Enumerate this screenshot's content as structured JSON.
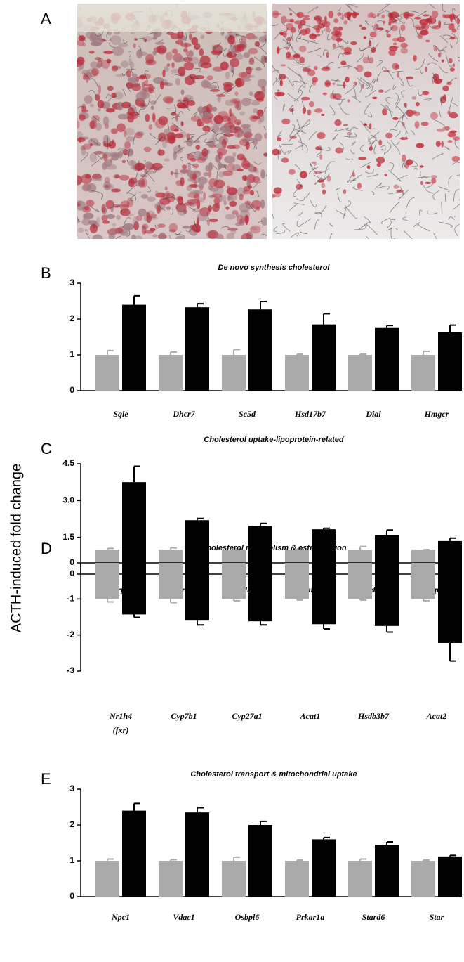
{
  "panel_a": {
    "label": "A"
  },
  "y_axis_label": "ACTH-induced fold change",
  "chart_data": [
    {
      "type": "bar",
      "panel_label": "B",
      "title": "De novo synthesis cholesterol",
      "categories": [
        "Sqle",
        "Dhcr7",
        "Sc5d",
        "Hsd17b7",
        "Dial",
        "Hmgcr"
      ],
      "series": [
        {
          "color": "#aaaaaa",
          "values": [
            1,
            1,
            1,
            1,
            1,
            1
          ],
          "errors": [
            0.12,
            0.08,
            0.15,
            0.02,
            0.02,
            0.1
          ]
        },
        {
          "color": "#000000",
          "values": [
            2.4,
            2.33,
            2.27,
            1.85,
            1.75,
            1.63
          ],
          "errors": [
            0.25,
            0.1,
            0.22,
            0.3,
            0.07,
            0.2
          ]
        }
      ],
      "ylim": [
        0,
        3
      ],
      "yticks": [
        0,
        1,
        2,
        3
      ]
    },
    {
      "type": "bar",
      "panel_label": "C",
      "title": "Cholesterol uptake-lipoprotein-related",
      "categories": [
        "Lrp8",
        "Ldlrap1",
        "Hdlbp",
        "Scarb1",
        "Ldlr",
        "Lrp10"
      ],
      "series": [
        {
          "color": "#aaaaaa",
          "values": [
            1,
            1,
            1,
            1,
            1,
            1
          ],
          "errors": [
            0.05,
            0.07,
            0.04,
            0.03,
            0.13,
            0
          ]
        },
        {
          "color": "#000000",
          "values": [
            3.75,
            2.2,
            1.97,
            1.83,
            1.6,
            1.35
          ],
          "errors": [
            0.65,
            0.07,
            0.1,
            0.04,
            0.2,
            0.12
          ]
        }
      ],
      "ylim": [
        0,
        4.5
      ],
      "yticks": [
        0,
        1.5,
        {
          "value": 3,
          "label": "3.0"
        },
        4.5
      ]
    },
    {
      "type": "bar",
      "panel_label": "D",
      "title": "Cholesterol metabolism & esterification",
      "categories": [
        "Nr1h4 (fxr)",
        "Cyp7b1",
        "Cyp27a1",
        "Acat1",
        "Hsdb3b7",
        "Acat2"
      ],
      "series": [
        {
          "color": "#aaaaaa",
          "values": [
            -1,
            -1,
            -1,
            -1,
            -1,
            -1
          ],
          "errors": [
            0.08,
            0.1,
            0.05,
            0.03,
            0.03,
            0.05
          ]
        },
        {
          "color": "#000000",
          "values": [
            -1.43,
            -1.6,
            -1.62,
            -1.7,
            -1.75,
            -2.22
          ],
          "errors": [
            0.08,
            0.12,
            0.1,
            0.13,
            0.17,
            0.5
          ]
        }
      ],
      "ylim": [
        -3,
        0
      ],
      "yticks": [
        0,
        -1,
        -2,
        -3
      ]
    },
    {
      "type": "bar",
      "panel_label": "E",
      "title": "Cholesterol transport & mitochondrial uptake",
      "categories": [
        "Npc1",
        "Vdac1",
        "Osbpl6",
        "Prkar1a",
        "Stard6",
        "Star"
      ],
      "series": [
        {
          "color": "#aaaaaa",
          "values": [
            1,
            1,
            1,
            1,
            1,
            1
          ],
          "errors": [
            0.05,
            0.03,
            0.1,
            0.02,
            0.05,
            0.02
          ]
        },
        {
          "color": "#000000",
          "values": [
            2.4,
            2.35,
            2.0,
            1.6,
            1.45,
            1.12
          ],
          "errors": [
            0.2,
            0.13,
            0.1,
            0.05,
            0.08,
            0.03
          ]
        }
      ],
      "ylim": [
        0,
        3
      ],
      "yticks": [
        0,
        1,
        2,
        3
      ]
    }
  ]
}
